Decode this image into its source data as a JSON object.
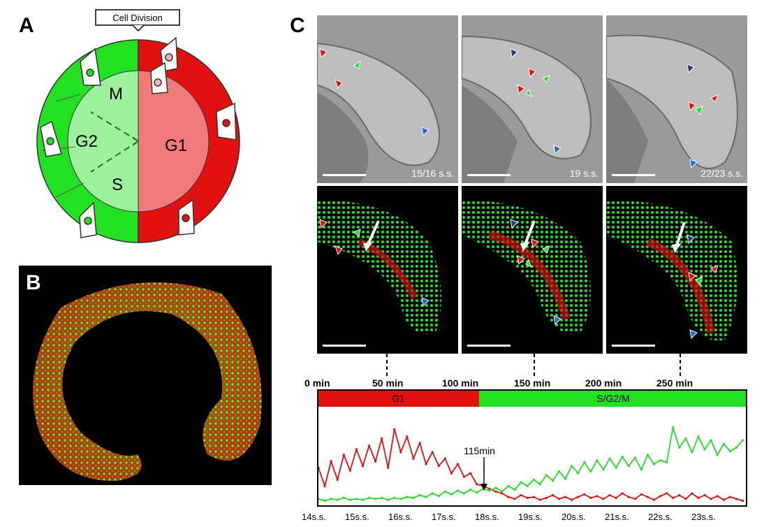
{
  "panels": {
    "a": {
      "letter": "A",
      "callout": "Cell Division",
      "phases": {
        "m": "M",
        "g2": "G2",
        "s": "S",
        "g1": "G1"
      }
    },
    "b": {
      "letter": "B"
    },
    "c": {
      "letter": "C",
      "frames": [
        {
          "stage": "15/16 s.s."
        },
        {
          "stage": "19 s.s."
        },
        {
          "stage": "22/23 s.s."
        }
      ]
    }
  },
  "colors": {
    "red": "#e31010",
    "green": "#22e022",
    "pink": "#f37a7a",
    "lightgreen": "#9cf29c"
  },
  "chart_data": {
    "type": "line",
    "top_axis_labels": [
      "0 min",
      "50 min",
      "100 min",
      "150 min",
      "200 min",
      "250 min"
    ],
    "phase_bars": [
      {
        "label": "G1",
        "color": "#e31010"
      },
      {
        "label": "S/G2/M",
        "color": "#22e022"
      }
    ],
    "x_labels": [
      "14s.s.",
      "15s.s.",
      "16s.s.",
      "17s.s.",
      "18s.s.",
      "19s.s.",
      "20s.s.",
      "21s.s.",
      "22s.s.",
      "23s.s."
    ],
    "annotation": {
      "text": "115min",
      "x_min": 115
    },
    "x_range_min": [
      0,
      270
    ],
    "y_range": [
      0,
      1
    ],
    "series": [
      {
        "color": "#e31010",
        "x": [
          0,
          4,
          8,
          12,
          16,
          20,
          24,
          28,
          32,
          36,
          40,
          44,
          48,
          52,
          56,
          60,
          64,
          68,
          72,
          76,
          80,
          84,
          88,
          92,
          96,
          100,
          104,
          108,
          112,
          116,
          120,
          124,
          128,
          132,
          136,
          140,
          144,
          148,
          152,
          156,
          160,
          164,
          168,
          172,
          176,
          180,
          184,
          188,
          192,
          196,
          200,
          204,
          208,
          212,
          216,
          220,
          224,
          228,
          232,
          236,
          240,
          244,
          248,
          252,
          256,
          260,
          264,
          268
        ],
        "y": [
          0.38,
          0.18,
          0.45,
          0.25,
          0.52,
          0.35,
          0.58,
          0.4,
          0.62,
          0.45,
          0.7,
          0.38,
          0.8,
          0.55,
          0.72,
          0.48,
          0.65,
          0.42,
          0.55,
          0.4,
          0.48,
          0.32,
          0.42,
          0.28,
          0.32,
          0.2,
          0.18,
          0.15,
          0.12,
          0.1,
          0.06,
          0.04,
          0.08,
          0.05,
          0.06,
          0.03,
          0.05,
          0.08,
          0.04,
          0.06,
          0.03,
          0.06,
          0.09,
          0.05,
          0.07,
          0.04,
          0.08,
          0.05,
          0.1,
          0.06,
          0.04,
          0.09,
          0.06,
          0.03,
          0.07,
          0.1,
          0.05,
          0.08,
          0.04,
          0.1,
          0.05,
          0.08,
          0.04,
          0.07,
          0.03,
          0.06,
          0.04,
          0.02
        ]
      },
      {
        "color": "#22e022",
        "x": [
          0,
          4,
          8,
          12,
          16,
          20,
          24,
          28,
          32,
          36,
          40,
          44,
          48,
          52,
          56,
          60,
          64,
          68,
          72,
          76,
          80,
          84,
          88,
          92,
          96,
          100,
          104,
          108,
          112,
          116,
          120,
          124,
          128,
          132,
          136,
          140,
          144,
          148,
          152,
          156,
          160,
          164,
          168,
          172,
          176,
          180,
          184,
          188,
          192,
          196,
          200,
          204,
          208,
          212,
          216,
          220,
          224,
          228,
          232,
          236,
          240,
          244,
          248,
          252,
          256,
          260,
          264,
          268
        ],
        "y": [
          0.04,
          0.02,
          0.04,
          0.03,
          0.05,
          0.03,
          0.04,
          0.03,
          0.05,
          0.04,
          0.05,
          0.03,
          0.05,
          0.04,
          0.06,
          0.05,
          0.08,
          0.06,
          0.1,
          0.07,
          0.12,
          0.09,
          0.13,
          0.1,
          0.14,
          0.11,
          0.15,
          0.13,
          0.16,
          0.12,
          0.18,
          0.14,
          0.22,
          0.18,
          0.25,
          0.2,
          0.3,
          0.24,
          0.34,
          0.26,
          0.4,
          0.32,
          0.44,
          0.34,
          0.46,
          0.36,
          0.48,
          0.38,
          0.5,
          0.4,
          0.49,
          0.36,
          0.52,
          0.42,
          0.46,
          0.44,
          0.82,
          0.6,
          0.7,
          0.55,
          0.72,
          0.58,
          0.68,
          0.52,
          0.64,
          0.56,
          0.6,
          0.68
        ]
      }
    ]
  }
}
